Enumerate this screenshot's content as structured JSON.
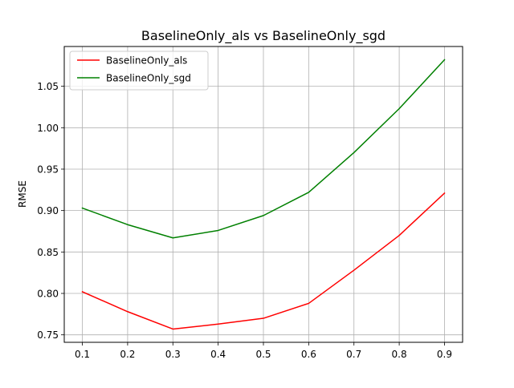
{
  "chart_data": {
    "type": "line",
    "title": "BaselineOnly_als vs BaselineOnly_sgd",
    "xlabel": "",
    "ylabel": "RMSE",
    "x": [
      0.1,
      0.2,
      0.3,
      0.4,
      0.5,
      0.6,
      0.7,
      0.8,
      0.9
    ],
    "x_ticks": [
      "0.1",
      "0.2",
      "0.3",
      "0.4",
      "0.5",
      "0.6",
      "0.7",
      "0.8",
      "0.9"
    ],
    "y_ticks": [
      "0.75",
      "0.80",
      "0.85",
      "0.90",
      "0.95",
      "1.00",
      "1.05"
    ],
    "xlim": [
      0.06,
      0.94
    ],
    "ylim": [
      0.741,
      1.098
    ],
    "grid": true,
    "legend_position": "top-left",
    "series": [
      {
        "name": "BaselineOnly_als",
        "color": "#ff0000",
        "values": [
          0.802,
          0.778,
          0.757,
          0.763,
          0.77,
          0.788,
          0.828,
          0.87,
          0.921
        ]
      },
      {
        "name": "BaselineOnly_sgd",
        "color": "#008000",
        "values": [
          0.903,
          0.883,
          0.867,
          0.876,
          0.894,
          0.922,
          0.97,
          1.023,
          1.082
        ]
      }
    ]
  }
}
